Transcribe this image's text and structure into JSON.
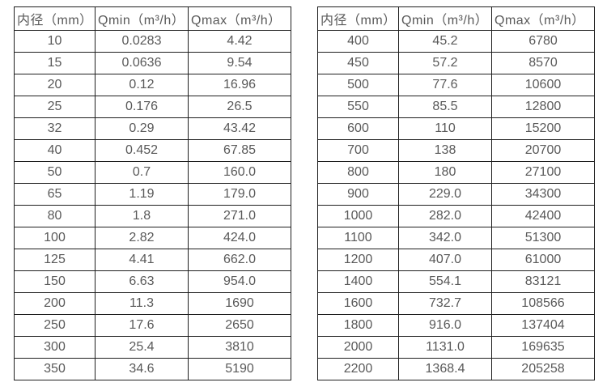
{
  "colors": {
    "background": "#ffffff",
    "border": "#1f1f1f",
    "text": "#595959"
  },
  "left_table": {
    "headers": [
      "内径（mm）",
      "Qmin（m³/h）",
      "Qmax（m³/h）"
    ],
    "rows": [
      [
        "10",
        "0.0283",
        "4.42"
      ],
      [
        "15",
        "0.0636",
        "9.54"
      ],
      [
        "20",
        "0.12",
        "16.96"
      ],
      [
        "25",
        "0.176",
        "26.5"
      ],
      [
        "32",
        "0.29",
        "43.42"
      ],
      [
        "40",
        "0.452",
        "67.85"
      ],
      [
        "50",
        "0.7",
        "160.0"
      ],
      [
        "65",
        "1.19",
        "179.0"
      ],
      [
        "80",
        "1.8",
        "271.0"
      ],
      [
        "100",
        "2.82",
        "424.0"
      ],
      [
        "125",
        "4.41",
        "662.0"
      ],
      [
        "150",
        "6.63",
        "954.0"
      ],
      [
        "200",
        "11.3",
        "1690"
      ],
      [
        "250",
        "17.6",
        "2650"
      ],
      [
        "300",
        "25.4",
        "3810"
      ],
      [
        "350",
        "34.6",
        "5190"
      ]
    ]
  },
  "right_table": {
    "headers": [
      "内径（mm）",
      "Qmin（m³/h）",
      "Qmax（m³/h）"
    ],
    "rows": [
      [
        "400",
        "45.2",
        "6780"
      ],
      [
        "450",
        "57.2",
        "8570"
      ],
      [
        "500",
        "77.6",
        "10600"
      ],
      [
        "550",
        "85.5",
        "12800"
      ],
      [
        "600",
        "110",
        "15200"
      ],
      [
        "700",
        "138",
        "20700"
      ],
      [
        "800",
        "180",
        "27100"
      ],
      [
        "900",
        "229.0",
        "34300"
      ],
      [
        "1000",
        "282.0",
        "42400"
      ],
      [
        "1100",
        "342.0",
        "51300"
      ],
      [
        "1200",
        "407.0",
        "61000"
      ],
      [
        "1400",
        "554.1",
        "83121"
      ],
      [
        "1600",
        "732.7",
        "108566"
      ],
      [
        "1800",
        "916.0",
        "137404"
      ],
      [
        "2000",
        "1131.0",
        "169635"
      ],
      [
        "2200",
        "1368.4",
        "205258"
      ]
    ]
  }
}
